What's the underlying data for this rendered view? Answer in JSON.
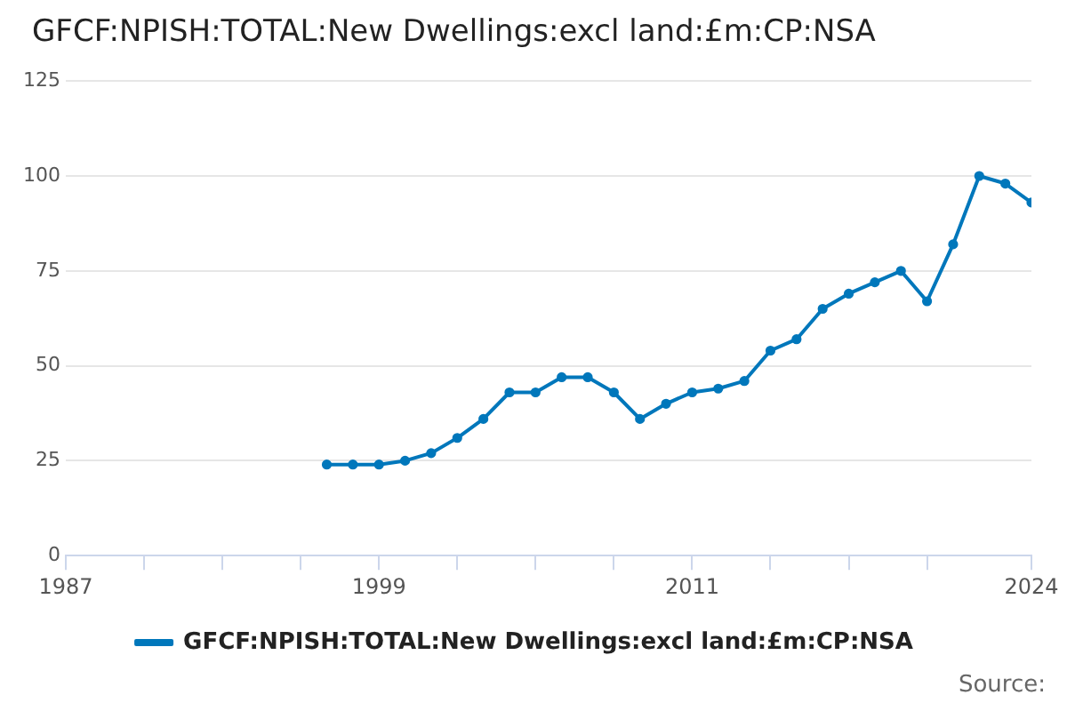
{
  "chart_data": {
    "type": "line",
    "title": "GFCF:NPISH:TOTAL:New Dwellings:excl land:£m:CP:NSA",
    "x": [
      1997,
      1998,
      1999,
      2000,
      2001,
      2002,
      2003,
      2004,
      2005,
      2006,
      2007,
      2008,
      2009,
      2010,
      2011,
      2012,
      2013,
      2014,
      2015,
      2016,
      2017,
      2018,
      2019,
      2020,
      2021,
      2022,
      2023,
      2024
    ],
    "series": [
      {
        "name": "GFCF:NPISH:TOTAL:New Dwellings:excl land:£m:CP:NSA",
        "color": "#0077bb",
        "values": [
          24,
          24,
          24,
          25,
          27,
          31,
          36,
          43,
          43,
          47,
          47,
          43,
          36,
          40,
          43,
          44,
          46,
          54,
          57,
          65,
          69,
          72,
          75,
          67,
          82,
          100,
          98,
          93
        ]
      }
    ],
    "xlim": [
      1987,
      2024
    ],
    "xticks": [
      1987,
      {
        "value": 1990,
        "label": null
      },
      {
        "value": 1993,
        "label": null
      },
      {
        "value": 1996,
        "label": null
      },
      1999,
      {
        "value": 2002,
        "label": null
      },
      {
        "value": 2005,
        "label": null
      },
      {
        "value": 2008,
        "label": null
      },
      2011,
      {
        "value": 2014,
        "label": null
      },
      {
        "value": 2017,
        "label": null
      },
      {
        "value": 2020,
        "label": null
      },
      2024
    ],
    "ylim": [
      0,
      125
    ],
    "yticks": [
      0,
      25,
      50,
      75,
      100,
      125
    ],
    "grid": "y",
    "legend": "bottom",
    "marker": "circle",
    "line_style": "solid",
    "annotations": [
      "Source:"
    ]
  }
}
